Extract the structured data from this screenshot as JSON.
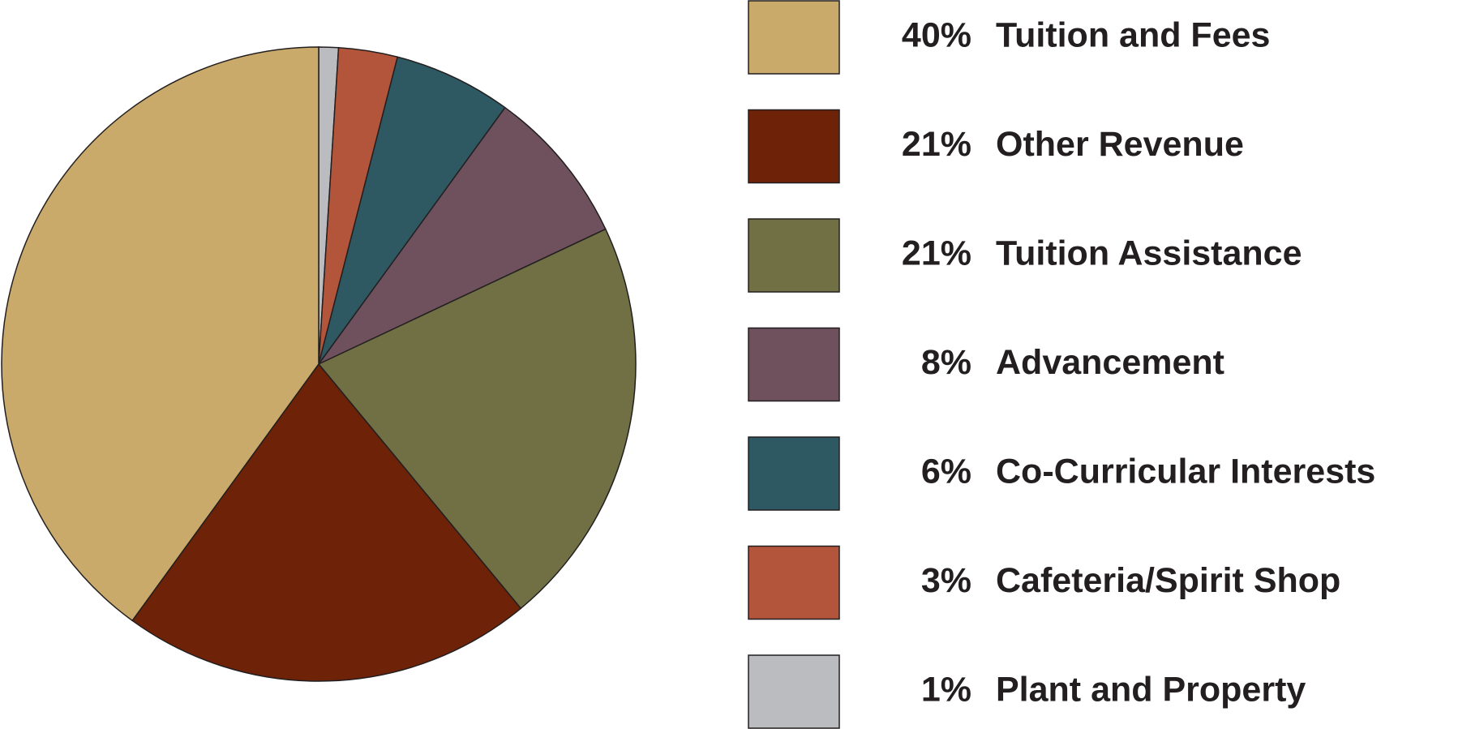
{
  "chart_data": {
    "type": "pie",
    "categories": [
      "Tuition and Fees",
      "Other Revenue",
      "Tuition Assistance",
      "Advancement",
      "Co-Curricular Interests",
      "Cafeteria/Spirit Shop",
      "Plant and Property"
    ],
    "values": [
      40,
      21,
      21,
      8,
      6,
      3,
      1
    ],
    "value_labels": [
      "40%",
      "21%",
      "21%",
      "8%",
      "6%",
      "3%",
      "1%"
    ],
    "colors": [
      "#c9aa6a",
      "#6e2208",
      "#707044",
      "#6e515c",
      "#2e5962",
      "#b2553a",
      "#bbbcc0"
    ]
  }
}
